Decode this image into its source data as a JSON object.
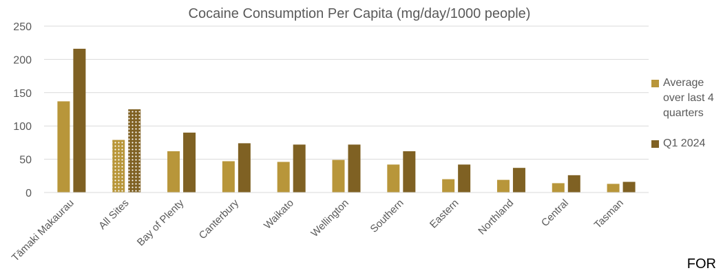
{
  "chart_data": {
    "type": "bar",
    "title": "Cocaine Consumption Per Capita (mg/day/1000 people)",
    "categories": [
      "Tāmaki Makaurau",
      "All Sites",
      "Bay of Plenty",
      "Canterbury",
      "Waikato",
      "Wellington",
      "Southern",
      "Eastern",
      "Northland",
      "Central",
      "Tasman"
    ],
    "series": [
      {
        "name": "Average over last 4 quarters",
        "color": "#B8963A",
        "values": [
          137,
          79,
          62,
          47,
          46,
          49,
          42,
          20,
          19,
          14,
          13
        ]
      },
      {
        "name": "Q1 2024",
        "color": "#7F6123",
        "values": [
          216,
          125,
          90,
          74,
          72,
          72,
          62,
          42,
          37,
          26,
          16
        ]
      }
    ],
    "highlight_category": "All Sites",
    "highlight_pattern": "dotted",
    "yticks": [
      "0",
      "50",
      "100",
      "150",
      "200",
      "250"
    ],
    "ylim": [
      0,
      250
    ],
    "grid": true,
    "legend_position": "right"
  },
  "footer_text": "FOR"
}
